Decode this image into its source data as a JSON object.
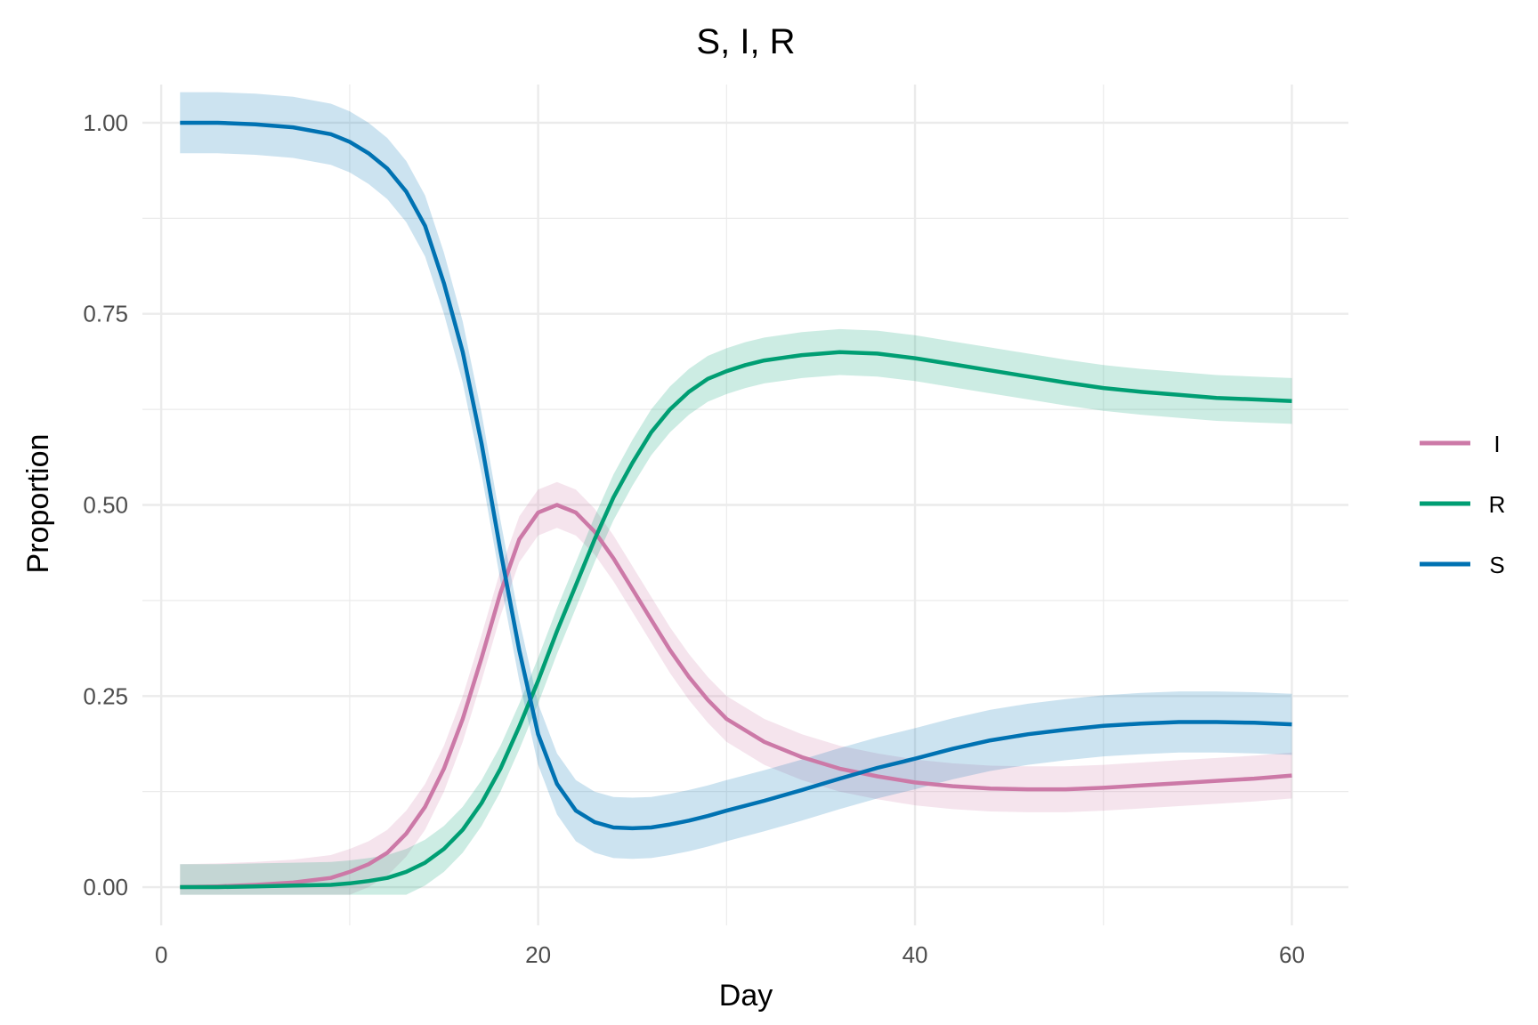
{
  "chart_data": {
    "type": "line",
    "title": "S, I, R",
    "xlabel": "Day",
    "ylabel": "Proportion",
    "xlim": [
      -1,
      63
    ],
    "ylim": [
      -0.05,
      1.05
    ],
    "x_ticks": [
      0,
      20,
      40,
      60
    ],
    "x_tick_labels": [
      "0",
      "20",
      "40",
      "60"
    ],
    "y_ticks": [
      0,
      0.25,
      0.5,
      0.75,
      1.0
    ],
    "y_tick_labels": [
      "0.00",
      "0.25",
      "0.50",
      "0.75",
      "1.00"
    ],
    "grid": true,
    "legend_position": "right",
    "confidence_band": true,
    "series": [
      {
        "name": "I",
        "color": "#cc79a7",
        "band_halfwidth": 0.03,
        "x": [
          1,
          3,
          5,
          7,
          9,
          10,
          11,
          12,
          13,
          14,
          15,
          16,
          17,
          18,
          19,
          20,
          21,
          22,
          23,
          24,
          25,
          26,
          27,
          28,
          29,
          30,
          32,
          34,
          36,
          38,
          40,
          42,
          44,
          46,
          48,
          50,
          52,
          54,
          56,
          58,
          60
        ],
        "y": [
          0.0,
          0.001,
          0.003,
          0.006,
          0.012,
          0.02,
          0.03,
          0.045,
          0.07,
          0.105,
          0.155,
          0.22,
          0.3,
          0.385,
          0.455,
          0.49,
          0.5,
          0.49,
          0.465,
          0.43,
          0.39,
          0.35,
          0.31,
          0.275,
          0.245,
          0.22,
          0.19,
          0.17,
          0.155,
          0.145,
          0.137,
          0.132,
          0.129,
          0.128,
          0.128,
          0.13,
          0.133,
          0.136,
          0.139,
          0.142,
          0.146
        ]
      },
      {
        "name": "R",
        "color": "#009e73",
        "band_halfwidth": 0.03,
        "x": [
          1,
          3,
          5,
          7,
          9,
          10,
          11,
          12,
          13,
          14,
          15,
          16,
          17,
          18,
          19,
          20,
          21,
          22,
          23,
          24,
          25,
          26,
          27,
          28,
          29,
          30,
          31,
          32,
          34,
          36,
          38,
          40,
          42,
          44,
          46,
          48,
          50,
          52,
          54,
          56,
          58,
          60
        ],
        "y": [
          0.0,
          0.0,
          0.001,
          0.002,
          0.003,
          0.005,
          0.008,
          0.012,
          0.02,
          0.032,
          0.05,
          0.075,
          0.11,
          0.155,
          0.21,
          0.27,
          0.335,
          0.395,
          0.455,
          0.51,
          0.555,
          0.595,
          0.625,
          0.648,
          0.665,
          0.675,
          0.683,
          0.689,
          0.696,
          0.7,
          0.698,
          0.692,
          0.684,
          0.676,
          0.668,
          0.66,
          0.653,
          0.648,
          0.644,
          0.64,
          0.638,
          0.636
        ]
      },
      {
        "name": "S",
        "color": "#0072b2",
        "band_halfwidth": 0.04,
        "x": [
          1,
          3,
          5,
          7,
          9,
          10,
          11,
          12,
          13,
          14,
          15,
          16,
          17,
          18,
          19,
          20,
          21,
          22,
          23,
          24,
          25,
          26,
          27,
          28,
          29,
          30,
          32,
          34,
          36,
          38,
          40,
          42,
          44,
          46,
          48,
          50,
          52,
          54,
          56,
          58,
          60
        ],
        "y": [
          1.0,
          1.0,
          0.998,
          0.994,
          0.985,
          0.975,
          0.96,
          0.94,
          0.91,
          0.865,
          0.79,
          0.7,
          0.58,
          0.44,
          0.31,
          0.2,
          0.135,
          0.1,
          0.085,
          0.078,
          0.077,
          0.078,
          0.082,
          0.087,
          0.093,
          0.1,
          0.113,
          0.127,
          0.142,
          0.156,
          0.168,
          0.181,
          0.192,
          0.2,
          0.206,
          0.211,
          0.214,
          0.216,
          0.216,
          0.215,
          0.213
        ]
      }
    ]
  }
}
